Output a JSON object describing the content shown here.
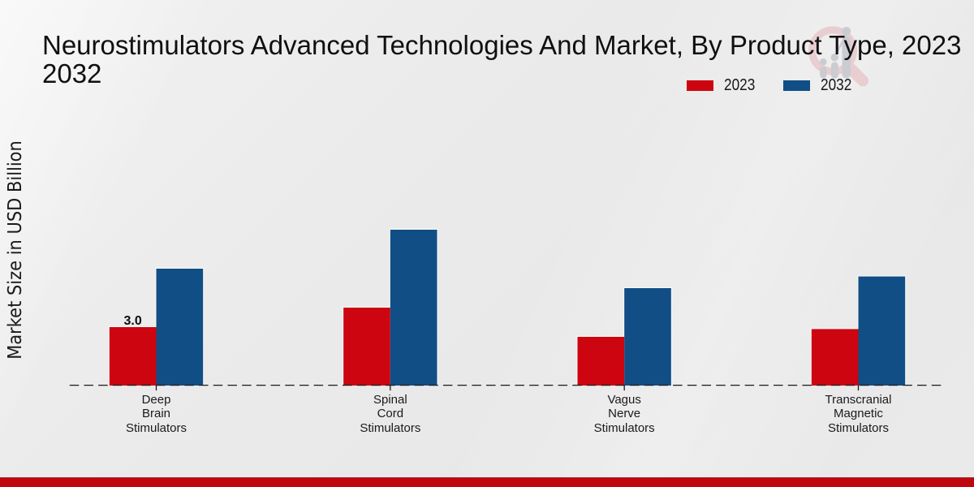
{
  "title": "Neurostimulators Advanced Technologies And Market, By Product Type, 2023 2032",
  "ylabel": "Market Size in USD Billion",
  "legend": {
    "items": [
      {
        "label": "2023",
        "color": "#cc0510"
      },
      {
        "label": "2032",
        "color": "#114e85"
      }
    ]
  },
  "value_label": "3.0",
  "colors": {
    "bar_2023": "#cc0510",
    "bar_2032": "#114e85",
    "axis_line": "#1a1a1a",
    "footer_band": "#c00710",
    "watermark_ring": "#e8cdd1",
    "watermark_figure": "#cbccd1"
  },
  "chart_data": {
    "type": "bar",
    "title": "Neurostimulators Advanced Technologies And Market, By Product Type, 2023 2032",
    "xlabel": "",
    "ylabel": "Market Size in USD Billion",
    "legend_position": "top-right",
    "grid": false,
    "categories": [
      "Deep Brain Stimulators",
      "Spinal Cord Stimulators",
      "Vagus Nerve Stimulators",
      "Transcranial Magnetic Stimulators"
    ],
    "categories_lines": [
      [
        "Deep",
        "Brain",
        "Stimulators"
      ],
      [
        "Spinal",
        "Cord",
        "Stimulators"
      ],
      [
        "Vagus",
        "Nerve",
        "Stimulators"
      ],
      [
        "Transcranial",
        "Magnetic",
        "Stimulators"
      ]
    ],
    "series": [
      {
        "name": "2023",
        "color": "#cc0510",
        "values": [
          3.0,
          4.0,
          2.5,
          2.9
        ]
      },
      {
        "name": "2032",
        "color": "#114e85",
        "values": [
          6.0,
          8.0,
          5.0,
          5.6
        ]
      }
    ],
    "bar_labels": [
      {
        "series": "2023",
        "category": "Deep Brain Stimulators",
        "text": "3.0"
      }
    ]
  }
}
